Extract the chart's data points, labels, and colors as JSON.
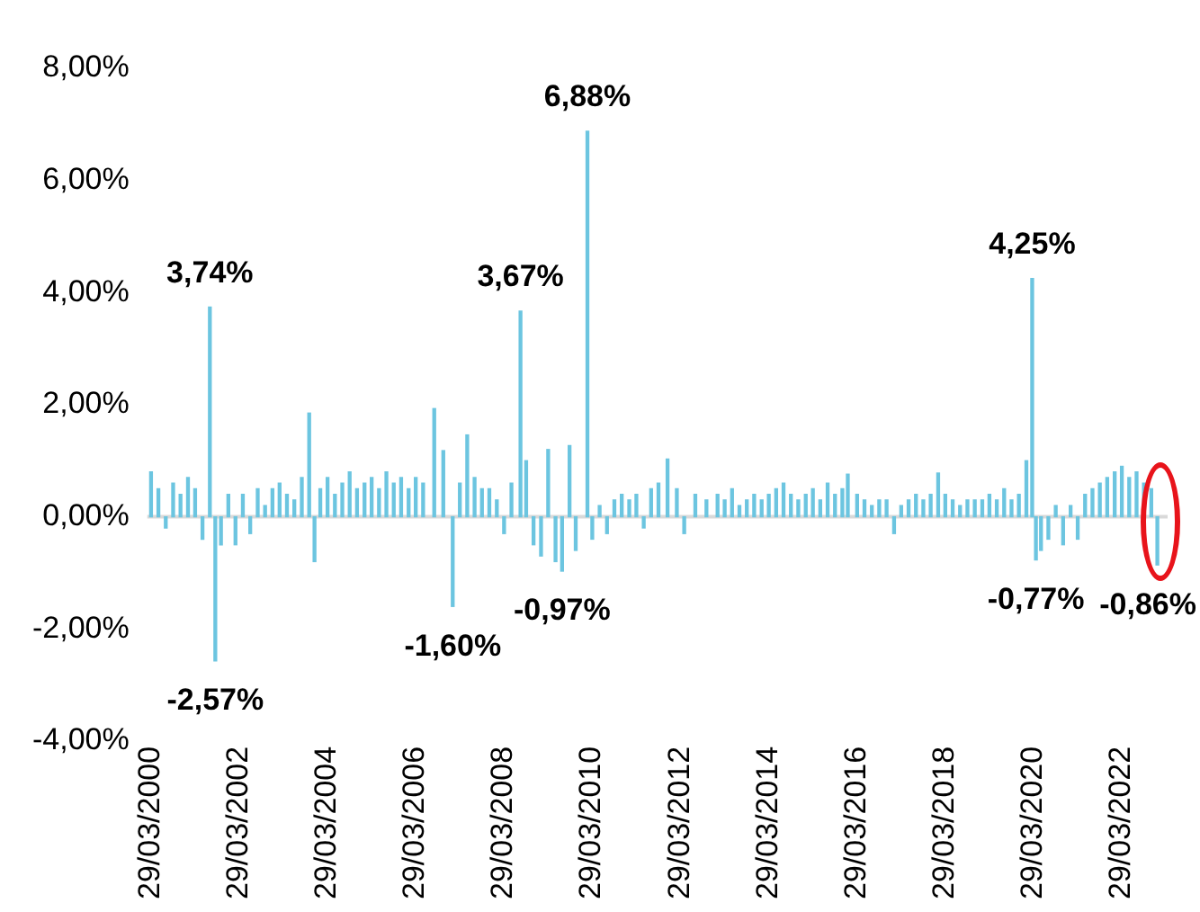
{
  "chart_data": {
    "type": "bar",
    "color": "#6cc5e0",
    "x": [
      "2000-04-01",
      "2000-06-01",
      "2000-08-01",
      "2000-10-01",
      "2000-12-01",
      "2001-02-01",
      "2001-04-01",
      "2001-06-01",
      "2001-08-01",
      "2001-09-15",
      "2001-11-01",
      "2002-01-01",
      "2002-03-01",
      "2002-05-01",
      "2002-07-01",
      "2002-09-01",
      "2002-11-01",
      "2003-01-01",
      "2003-03-01",
      "2003-05-01",
      "2003-07-01",
      "2003-09-01",
      "2003-11-01",
      "2003-12-15",
      "2004-02-01",
      "2004-04-01",
      "2004-06-01",
      "2004-08-01",
      "2004-10-01",
      "2004-12-01",
      "2005-02-01",
      "2005-04-01",
      "2005-06-01",
      "2005-08-01",
      "2005-10-01",
      "2005-12-01",
      "2006-02-01",
      "2006-04-01",
      "2006-06-01",
      "2006-09-01",
      "2006-11-15",
      "2007-02-01",
      "2007-04-01",
      "2007-06-01",
      "2007-08-01",
      "2007-10-01",
      "2007-12-01",
      "2008-02-01",
      "2008-04-01",
      "2008-06-01",
      "2008-08-15",
      "2008-10-01",
      "2008-12-01",
      "2009-02-01",
      "2009-04-01",
      "2009-06-01",
      "2009-07-25",
      "2009-09-25",
      "2009-11-15",
      "2010-02-20",
      "2010-04-01",
      "2010-06-01",
      "2010-08-01",
      "2010-10-01",
      "2010-12-01",
      "2011-02-01",
      "2011-04-01",
      "2011-06-01",
      "2011-08-01",
      "2011-10-01",
      "2011-12-15",
      "2012-03-01",
      "2012-05-01",
      "2012-08-01",
      "2012-11-01",
      "2013-02-01",
      "2013-04-01",
      "2013-06-01",
      "2013-08-01",
      "2013-10-01",
      "2013-12-01",
      "2014-02-01",
      "2014-04-01",
      "2014-06-01",
      "2014-08-01",
      "2014-10-01",
      "2014-12-01",
      "2015-02-01",
      "2015-04-01",
      "2015-06-01",
      "2015-08-01",
      "2015-10-01",
      "2015-12-01",
      "2016-01-15",
      "2016-04-01",
      "2016-06-01",
      "2016-08-01",
      "2016-10-01",
      "2016-12-01",
      "2017-02-01",
      "2017-04-01",
      "2017-06-01",
      "2017-08-01",
      "2017-10-01",
      "2017-12-01",
      "2018-02-01",
      "2018-04-01",
      "2018-06-01",
      "2018-08-01",
      "2018-10-01",
      "2018-12-01",
      "2019-02-01",
      "2019-04-01",
      "2019-06-01",
      "2019-08-01",
      "2019-10-01",
      "2019-12-01",
      "2020-02-01",
      "2020-03-20",
      "2020-04-20",
      "2020-06-01",
      "2020-08-01",
      "2020-10-01",
      "2020-12-01",
      "2021-02-01",
      "2021-04-01",
      "2021-06-01",
      "2021-08-01",
      "2021-10-01",
      "2021-12-01",
      "2022-02-01",
      "2022-04-01",
      "2022-06-01",
      "2022-08-01",
      "2022-10-01",
      "2022-12-01",
      "2023-01-20"
    ],
    "values": [
      0.8,
      0.5,
      -0.2,
      0.6,
      0.4,
      0.7,
      0.5,
      -0.4,
      3.74,
      -2.57,
      -0.5,
      0.4,
      -0.5,
      0.4,
      -0.3,
      0.5,
      0.2,
      0.5,
      0.6,
      0.4,
      0.3,
      0.7,
      1.85,
      -0.8,
      0.5,
      0.7,
      0.4,
      0.6,
      0.8,
      0.5,
      0.6,
      0.7,
      0.5,
      0.8,
      0.6,
      0.7,
      0.5,
      0.7,
      0.6,
      1.93,
      1.18,
      -1.6,
      0.6,
      1.46,
      0.7,
      0.5,
      0.5,
      0.3,
      -0.3,
      0.6,
      3.67,
      1.0,
      -0.5,
      -0.7,
      1.2,
      -0.8,
      -0.97,
      1.27,
      -0.6,
      6.88,
      -0.4,
      0.2,
      -0.3,
      0.3,
      0.4,
      0.3,
      0.4,
      -0.2,
      0.5,
      0.6,
      1.03,
      0.5,
      -0.3,
      0.4,
      0.3,
      0.4,
      0.3,
      0.5,
      0.2,
      0.3,
      0.4,
      0.3,
      0.4,
      0.5,
      0.6,
      0.4,
      0.3,
      0.4,
      0.5,
      0.3,
      0.6,
      0.4,
      0.5,
      0.76,
      0.4,
      0.3,
      0.2,
      0.3,
      0.3,
      -0.3,
      0.2,
      0.3,
      0.4,
      0.3,
      0.4,
      0.78,
      0.4,
      0.3,
      0.2,
      0.3,
      0.3,
      0.3,
      0.4,
      0.3,
      0.5,
      0.3,
      0.4,
      1.0,
      4.25,
      -0.77,
      -0.6,
      -0.4,
      0.2,
      -0.5,
      0.2,
      -0.4,
      0.4,
      0.5,
      0.6,
      0.7,
      0.8,
      0.9,
      0.7,
      0.8,
      0.6,
      0.5,
      -0.86
    ],
    "xlim": [
      "2000-03-01",
      "2023-04-15"
    ],
    "xticks": [
      {
        "value": "2000-03-29",
        "label": "29/03/2000"
      },
      {
        "value": "2002-03-29",
        "label": "29/03/2002"
      },
      {
        "value": "2004-03-29",
        "label": "29/03/2004"
      },
      {
        "value": "2006-03-29",
        "label": "29/03/2006"
      },
      {
        "value": "2008-03-29",
        "label": "29/03/2008"
      },
      {
        "value": "2010-03-29",
        "label": "29/03/2010"
      },
      {
        "value": "2012-03-29",
        "label": "29/03/2012"
      },
      {
        "value": "2014-03-29",
        "label": "29/03/2014"
      },
      {
        "value": "2016-03-29",
        "label": "29/03/2016"
      },
      {
        "value": "2018-03-29",
        "label": "29/03/2018"
      },
      {
        "value": "2020-03-29",
        "label": "29/03/2020"
      },
      {
        "value": "2022-03-29",
        "label": "29/03/2022"
      }
    ],
    "ylim": [
      -4,
      8
    ],
    "yticks": [
      {
        "value": -4,
        "label": "-4,00%"
      },
      {
        "value": -2,
        "label": "-2,00%"
      },
      {
        "value": 0,
        "label": "0,00%"
      },
      {
        "value": 2,
        "label": "2,00%"
      },
      {
        "value": 4,
        "label": "4,00%"
      },
      {
        "value": 6,
        "label": "6,00%"
      },
      {
        "value": 8,
        "label": "8,00%"
      }
    ],
    "annotations": [
      {
        "text": "3,74%",
        "x": "2001-08-01",
        "y": 3.74
      },
      {
        "text": "-2,57%",
        "x": "2001-09-15",
        "y": -2.57
      },
      {
        "text": "-1,60%",
        "x": "2007-02-01",
        "y": -1.6
      },
      {
        "text": "3,67%",
        "x": "2008-08-15",
        "y": 3.67
      },
      {
        "text": "-0,97%",
        "x": "2009-07-25",
        "y": -0.97
      },
      {
        "text": "6,88%",
        "x": "2010-02-20",
        "y": 6.88
      },
      {
        "text": "4,25%",
        "x": "2020-03-20",
        "y": 4.25
      },
      {
        "text": "-0,77%",
        "x": "2020-04-20",
        "y": -0.77
      },
      {
        "text": "-0,86%",
        "x": "2023-01-20",
        "y": -0.86
      }
    ],
    "ref_lines": [
      {
        "axis": "y",
        "value": 0,
        "color": "#d9d9d9"
      }
    ],
    "grid": false,
    "legend": false
  }
}
